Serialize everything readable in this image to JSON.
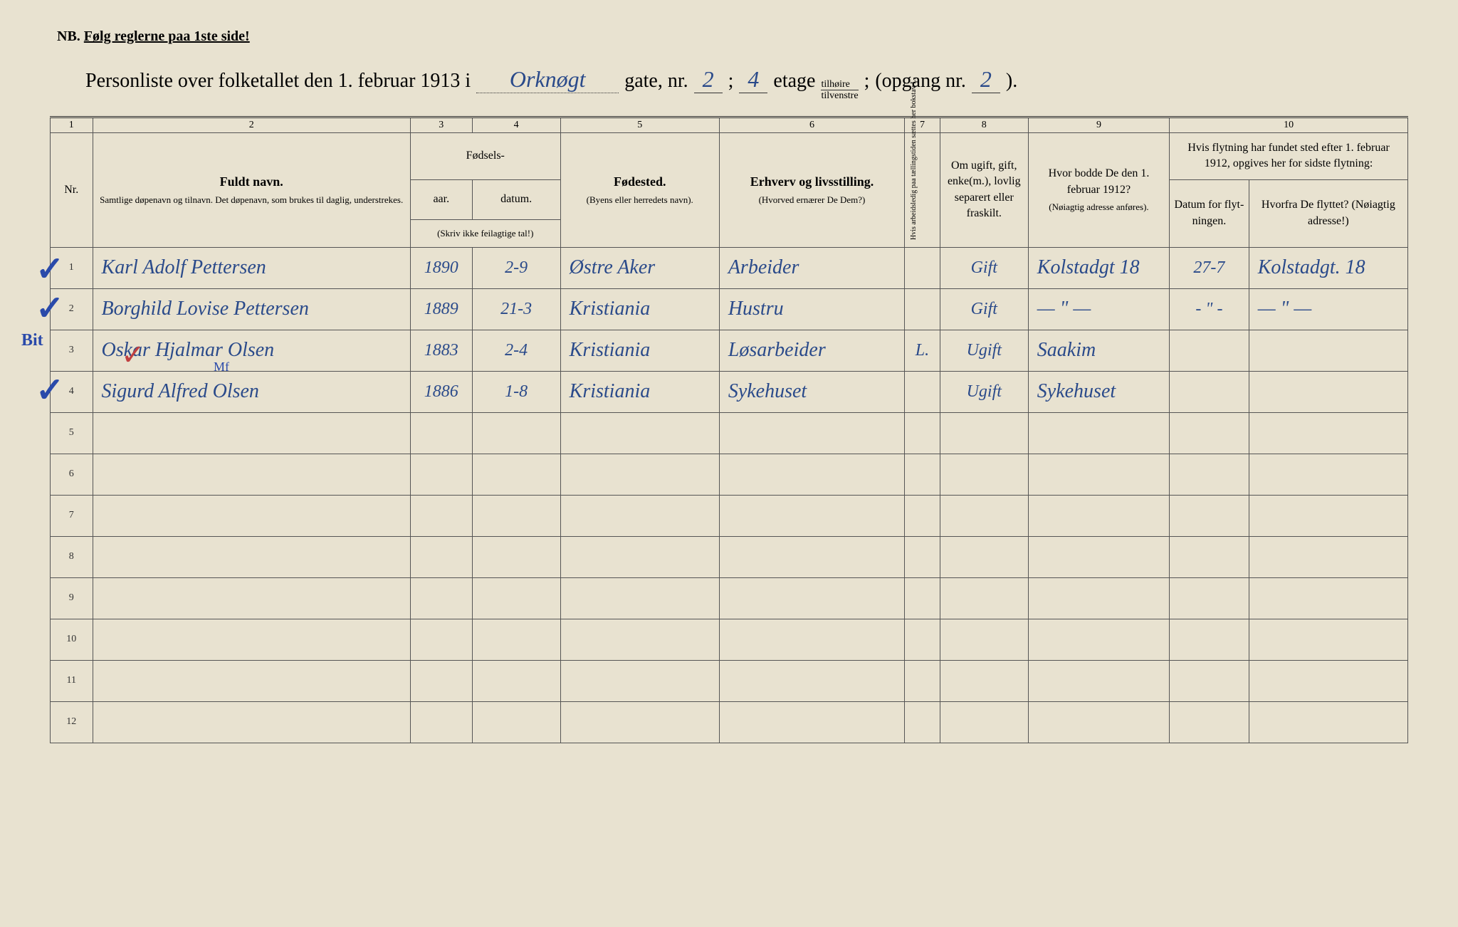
{
  "header": {
    "nb_label": "NB.",
    "nb_text": "Følg reglerne paa 1ste side!",
    "census_title_prefix": "Personliste over folketallet den 1. februar 1913 i",
    "street_name": "Orknøgt",
    "gate_label": "gate, nr.",
    "gate_nr": "2",
    "semicolon": ";",
    "etage_nr": "4",
    "etage_label": "etage",
    "side_top": "tilhøire",
    "side_bottom": "tilvenstre",
    "opgang_label": "(opgang nr.",
    "opgang_nr": "2",
    "opgang_close": ")."
  },
  "columns": {
    "numbers": [
      "1",
      "2",
      "3",
      "4",
      "5",
      "6",
      "7",
      "8",
      "9",
      "10"
    ],
    "nr": "Nr.",
    "name_bold": "Fuldt navn.",
    "name_sub": "Samtlige døpenavn og tilnavn. Det døpenavn, som brukes til daglig, understrekes.",
    "birth_group": "Fødsels-",
    "year": "aar.",
    "date": "datum.",
    "birth_note": "(Skriv ikke feilagtige tal!)",
    "birthplace_bold": "Fødested.",
    "birthplace_sub": "(Byens eller herredets navn).",
    "occupation_bold": "Erhverv og livsstilling.",
    "occupation_sub": "(Hvorved ernærer De Dem?)",
    "col7_text": "Hvis arbeidsledig paa tællingstiden sættes her bokstav L.",
    "marital": "Om ugift, gift, enke(m.), lovlig separert eller fraskilt.",
    "residence_bold": "Hvor bodde De den 1. februar 1912?",
    "residence_sub": "(Nøiagtig adresse anføres).",
    "move_header": "Hvis flytning har fundet sted efter 1. februar 1912, opgives her for sidste flytning:",
    "move_date": "Datum for flyt-ningen.",
    "move_from": "Hvorfra De flyttet? (Nøiagtig adresse!)"
  },
  "rows": [
    {
      "nr": "1",
      "name": "Karl Adolf Pettersen",
      "year": "1890",
      "date": "2-9",
      "birthplace": "Østre Aker",
      "occupation": "Arbeider",
      "col7": "",
      "marital": "Gift",
      "residence": "Kolstadgt 18",
      "move_date": "27-7",
      "move_from": "Kolstadgt. 18"
    },
    {
      "nr": "2",
      "name": "Borghild Lovise Pettersen",
      "year": "1889",
      "date": "21-3",
      "birthplace": "Kristiania",
      "occupation": "Hustru",
      "col7": "",
      "marital": "Gift",
      "residence": "— \" —",
      "move_date": "- \" -",
      "move_from": "— \" —"
    },
    {
      "nr": "3",
      "name": "Oskar Hjalmar Olsen",
      "year": "1883",
      "date": "2-4",
      "birthplace": "Kristiania",
      "occupation": "Løsarbeider",
      "col7": "L.",
      "marital": "Ugift",
      "residence": "Saakim",
      "move_date": "",
      "move_from": ""
    },
    {
      "nr": "4",
      "name": "Sigurd Alfred Olsen",
      "year": "1886",
      "date": "1-8",
      "birthplace": "Kristiania",
      "occupation": "Sykehuset",
      "col7": "",
      "marital": "Ugift",
      "residence": "Sykehuset",
      "move_date": "",
      "move_from": ""
    },
    {
      "nr": "5",
      "name": "",
      "year": "",
      "date": "",
      "birthplace": "",
      "occupation": "",
      "col7": "",
      "marital": "",
      "residence": "",
      "move_date": "",
      "move_from": ""
    },
    {
      "nr": "6",
      "name": "",
      "year": "",
      "date": "",
      "birthplace": "",
      "occupation": "",
      "col7": "",
      "marital": "",
      "residence": "",
      "move_date": "",
      "move_from": ""
    },
    {
      "nr": "7",
      "name": "",
      "year": "",
      "date": "",
      "birthplace": "",
      "occupation": "",
      "col7": "",
      "marital": "",
      "residence": "",
      "move_date": "",
      "move_from": ""
    },
    {
      "nr": "8",
      "name": "",
      "year": "",
      "date": "",
      "birthplace": "",
      "occupation": "",
      "col7": "",
      "marital": "",
      "residence": "",
      "move_date": "",
      "move_from": ""
    },
    {
      "nr": "9",
      "name": "",
      "year": "",
      "date": "",
      "birthplace": "",
      "occupation": "",
      "col7": "",
      "marital": "",
      "residence": "",
      "move_date": "",
      "move_from": ""
    },
    {
      "nr": "10",
      "name": "",
      "year": "",
      "date": "",
      "birthplace": "",
      "occupation": "",
      "col7": "",
      "marital": "",
      "residence": "",
      "move_date": "",
      "move_from": ""
    },
    {
      "nr": "11",
      "name": "",
      "year": "",
      "date": "",
      "birthplace": "",
      "occupation": "",
      "col7": "",
      "marital": "",
      "residence": "",
      "move_date": "",
      "move_from": ""
    },
    {
      "nr": "12",
      "name": "",
      "year": "",
      "date": "",
      "birthplace": "",
      "occupation": "",
      "col7": "",
      "marital": "",
      "residence": "",
      "move_date": "",
      "move_from": ""
    }
  ],
  "annotations": {
    "check1": "✓",
    "check2": "✓",
    "check3": "✓",
    "check4": "✓",
    "bit_label": "Bit",
    "red_check": "✓",
    "mf_note": "Mf"
  },
  "styling": {
    "paper_bg": "#e8e2d0",
    "ink_color": "#2a4a8a",
    "red_ink": "#c04040",
    "print_color": "#333333",
    "border_color": "#555555"
  }
}
